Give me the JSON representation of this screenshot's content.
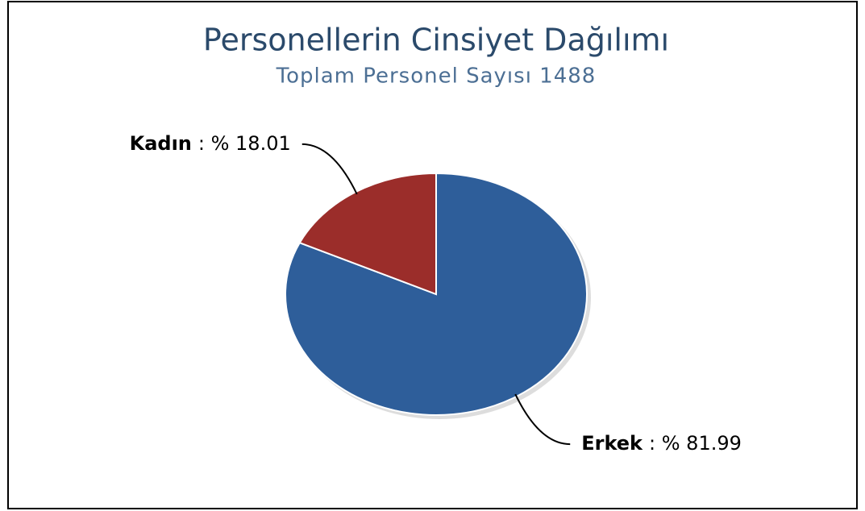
{
  "chart_data": {
    "type": "pie",
    "title": "Personellerin Cinsiyet Dağılımı",
    "subtitle": "Toplam Personel Sayısı 1488",
    "categories": [
      "Erkek",
      "Kadın"
    ],
    "values": [
      81.99,
      18.01
    ],
    "value_labels": [
      ": % 81.99",
      ": % 18.01"
    ],
    "colors": [
      "#2e5e9a",
      "#9b2d2a"
    ]
  }
}
